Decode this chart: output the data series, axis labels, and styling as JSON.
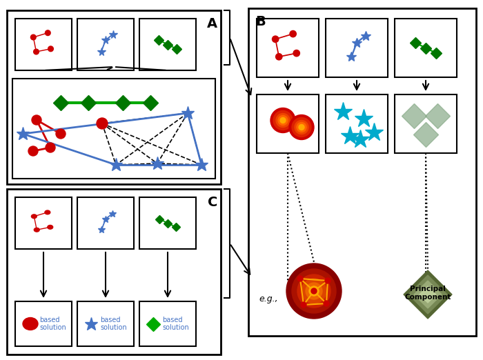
{
  "bg_color": "#ffffff",
  "label_A": "A",
  "label_B": "B",
  "label_C": "C",
  "red_color": "#cc0000",
  "blue_color": "#4472c4",
  "green_color": "#00aa00",
  "dark_green": "#007700",
  "cyan_star": "#00aacc",
  "orange_red": "#ff4400",
  "text_color": "#333333",
  "based_solution_text": "based\nsolution"
}
